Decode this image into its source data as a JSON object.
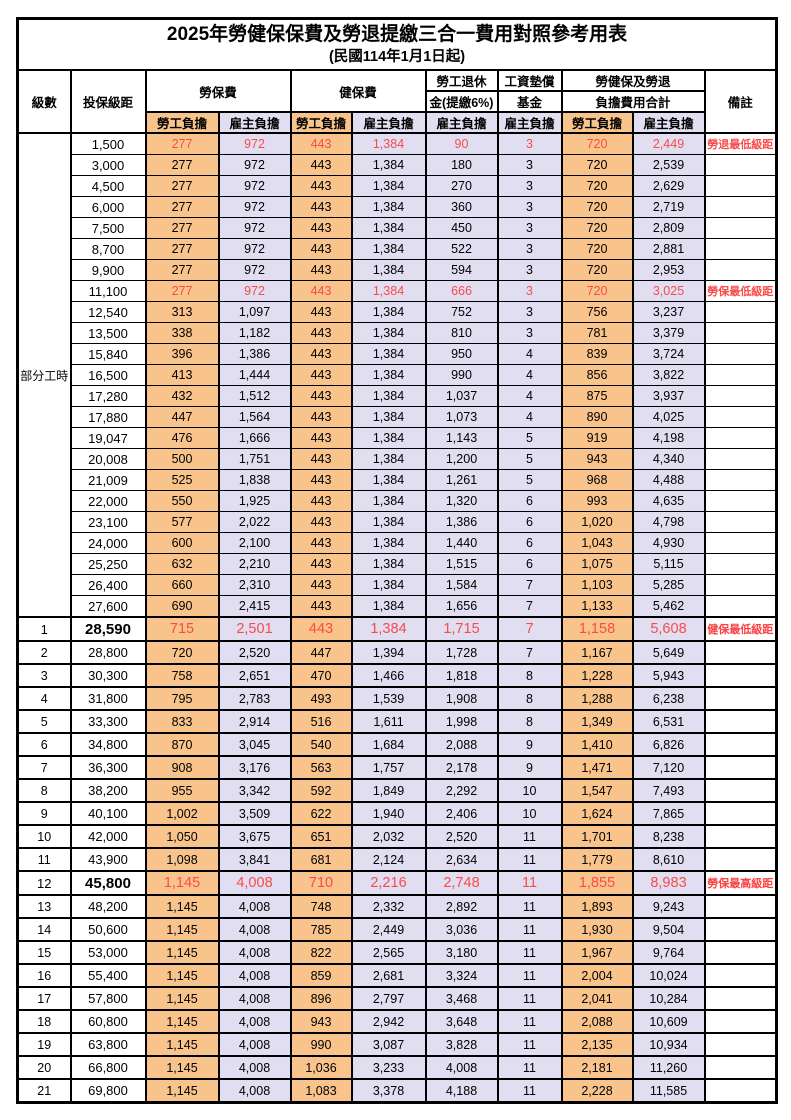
{
  "title": {
    "line1": "2025年勞健保保費及勞退提繳三合一費用對照參考用表",
    "line2": "(民國114年1月1日起)"
  },
  "colors": {
    "employee_column_bg": "#F9C48B",
    "employer_column_bg": "#E0DEF0",
    "highlight_text": "#F94B4B",
    "remark_text": "#FB4242",
    "border": "#000000"
  },
  "header": {
    "level": "級數",
    "bracket": "投保級距",
    "labor_insurance": "勞保費",
    "health_insurance": "健保費",
    "pension_line1": "勞工退休",
    "pension_line2": "金(提繳6%)",
    "wage_fund_line1": "工資墊償",
    "wage_fund_line2": "基金",
    "total_line1": "勞健保及勞退",
    "total_line2": "負擔費用合計",
    "remark": "備註",
    "employee_share": "勞工負擔",
    "employer_share": "雇主負擔"
  },
  "value_columns": [
    "勞保費-勞工負擔",
    "勞保費-雇主負擔",
    "健保費-勞工負擔",
    "健保費-雇主負擔",
    "勞工退休金-雇主負擔",
    "工資墊償基金-雇主負擔",
    "合計-勞工負擔",
    "合計-雇主負擔"
  ],
  "table": {
    "sections": {
      "part_time": {
        "label": "部分工時",
        "rows": [
          {
            "bracket": "1,500",
            "values": [
              "277",
              "972",
              "443",
              "1,384",
              "90",
              "3",
              "720",
              "2,449"
            ],
            "remark": "勞退最低級距",
            "style": "red"
          },
          {
            "bracket": "3,000",
            "values": [
              "277",
              "972",
              "443",
              "1,384",
              "180",
              "3",
              "720",
              "2,539"
            ],
            "remark": "",
            "style": ""
          },
          {
            "bracket": "4,500",
            "values": [
              "277",
              "972",
              "443",
              "1,384",
              "270",
              "3",
              "720",
              "2,629"
            ],
            "remark": "",
            "style": ""
          },
          {
            "bracket": "6,000",
            "values": [
              "277",
              "972",
              "443",
              "1,384",
              "360",
              "3",
              "720",
              "2,719"
            ],
            "remark": "",
            "style": ""
          },
          {
            "bracket": "7,500",
            "values": [
              "277",
              "972",
              "443",
              "1,384",
              "450",
              "3",
              "720",
              "2,809"
            ],
            "remark": "",
            "style": ""
          },
          {
            "bracket": "8,700",
            "values": [
              "277",
              "972",
              "443",
              "1,384",
              "522",
              "3",
              "720",
              "2,881"
            ],
            "remark": "",
            "style": ""
          },
          {
            "bracket": "9,900",
            "values": [
              "277",
              "972",
              "443",
              "1,384",
              "594",
              "3",
              "720",
              "2,953"
            ],
            "remark": "",
            "style": ""
          },
          {
            "bracket": "11,100",
            "values": [
              "277",
              "972",
              "443",
              "1,384",
              "666",
              "3",
              "720",
              "3,025"
            ],
            "remark": "勞保最低級距",
            "style": "red"
          },
          {
            "bracket": "12,540",
            "values": [
              "313",
              "1,097",
              "443",
              "1,384",
              "752",
              "3",
              "756",
              "3,237"
            ],
            "remark": "",
            "style": ""
          },
          {
            "bracket": "13,500",
            "values": [
              "338",
              "1,182",
              "443",
              "1,384",
              "810",
              "3",
              "781",
              "3,379"
            ],
            "remark": "",
            "style": ""
          },
          {
            "bracket": "15,840",
            "values": [
              "396",
              "1,386",
              "443",
              "1,384",
              "950",
              "4",
              "839",
              "3,724"
            ],
            "remark": "",
            "style": ""
          },
          {
            "bracket": "16,500",
            "values": [
              "413",
              "1,444",
              "443",
              "1,384",
              "990",
              "4",
              "856",
              "3,822"
            ],
            "remark": "",
            "style": ""
          },
          {
            "bracket": "17,280",
            "values": [
              "432",
              "1,512",
              "443",
              "1,384",
              "1,037",
              "4",
              "875",
              "3,937"
            ],
            "remark": "",
            "style": ""
          },
          {
            "bracket": "17,880",
            "values": [
              "447",
              "1,564",
              "443",
              "1,384",
              "1,073",
              "4",
              "890",
              "4,025"
            ],
            "remark": "",
            "style": ""
          },
          {
            "bracket": "19,047",
            "values": [
              "476",
              "1,666",
              "443",
              "1,384",
              "1,143",
              "5",
              "919",
              "4,198"
            ],
            "remark": "",
            "style": ""
          },
          {
            "bracket": "20,008",
            "values": [
              "500",
              "1,751",
              "443",
              "1,384",
              "1,200",
              "5",
              "943",
              "4,340"
            ],
            "remark": "",
            "style": ""
          },
          {
            "bracket": "21,009",
            "values": [
              "525",
              "1,838",
              "443",
              "1,384",
              "1,261",
              "5",
              "968",
              "4,488"
            ],
            "remark": "",
            "style": ""
          },
          {
            "bracket": "22,000",
            "values": [
              "550",
              "1,925",
              "443",
              "1,384",
              "1,320",
              "6",
              "993",
              "4,635"
            ],
            "remark": "",
            "style": ""
          },
          {
            "bracket": "23,100",
            "values": [
              "577",
              "2,022",
              "443",
              "1,384",
              "1,386",
              "6",
              "1,020",
              "4,798"
            ],
            "remark": "",
            "style": ""
          },
          {
            "bracket": "24,000",
            "values": [
              "600",
              "2,100",
              "443",
              "1,384",
              "1,440",
              "6",
              "1,043",
              "4,930"
            ],
            "remark": "",
            "style": ""
          },
          {
            "bracket": "25,250",
            "values": [
              "632",
              "2,210",
              "443",
              "1,384",
              "1,515",
              "6",
              "1,075",
              "5,115"
            ],
            "remark": "",
            "style": ""
          },
          {
            "bracket": "26,400",
            "values": [
              "660",
              "2,310",
              "443",
              "1,384",
              "1,584",
              "7",
              "1,103",
              "5,285"
            ],
            "remark": "",
            "style": ""
          },
          {
            "bracket": "27,600",
            "values": [
              "690",
              "2,415",
              "443",
              "1,384",
              "1,656",
              "7",
              "1,133",
              "5,462"
            ],
            "remark": "",
            "style": ""
          }
        ]
      },
      "levels": {
        "rows": [
          {
            "level": "1",
            "bracket": "28,590",
            "values": [
              "715",
              "2,501",
              "443",
              "1,384",
              "1,715",
              "7",
              "1,158",
              "5,608"
            ],
            "remark": "健保最低級距",
            "style": "hl"
          },
          {
            "level": "2",
            "bracket": "28,800",
            "values": [
              "720",
              "2,520",
              "447",
              "1,394",
              "1,728",
              "7",
              "1,167",
              "5,649"
            ],
            "remark": "",
            "style": ""
          },
          {
            "level": "3",
            "bracket": "30,300",
            "values": [
              "758",
              "2,651",
              "470",
              "1,466",
              "1,818",
              "8",
              "1,228",
              "5,943"
            ],
            "remark": "",
            "style": ""
          },
          {
            "level": "4",
            "bracket": "31,800",
            "values": [
              "795",
              "2,783",
              "493",
              "1,539",
              "1,908",
              "8",
              "1,288",
              "6,238"
            ],
            "remark": "",
            "style": ""
          },
          {
            "level": "5",
            "bracket": "33,300",
            "values": [
              "833",
              "2,914",
              "516",
              "1,611",
              "1,998",
              "8",
              "1,349",
              "6,531"
            ],
            "remark": "",
            "style": ""
          },
          {
            "level": "6",
            "bracket": "34,800",
            "values": [
              "870",
              "3,045",
              "540",
              "1,684",
              "2,088",
              "9",
              "1,410",
              "6,826"
            ],
            "remark": "",
            "style": ""
          },
          {
            "level": "7",
            "bracket": "36,300",
            "values": [
              "908",
              "3,176",
              "563",
              "1,757",
              "2,178",
              "9",
              "1,471",
              "7,120"
            ],
            "remark": "",
            "style": ""
          },
          {
            "level": "8",
            "bracket": "38,200",
            "values": [
              "955",
              "3,342",
              "592",
              "1,849",
              "2,292",
              "10",
              "1,547",
              "7,493"
            ],
            "remark": "",
            "style": ""
          },
          {
            "level": "9",
            "bracket": "40,100",
            "values": [
              "1,002",
              "3,509",
              "622",
              "1,940",
              "2,406",
              "10",
              "1,624",
              "7,865"
            ],
            "remark": "",
            "style": ""
          },
          {
            "level": "10",
            "bracket": "42,000",
            "values": [
              "1,050",
              "3,675",
              "651",
              "2,032",
              "2,520",
              "11",
              "1,701",
              "8,238"
            ],
            "remark": "",
            "style": ""
          },
          {
            "level": "11",
            "bracket": "43,900",
            "values": [
              "1,098",
              "3,841",
              "681",
              "2,124",
              "2,634",
              "11",
              "1,779",
              "8,610"
            ],
            "remark": "",
            "style": ""
          },
          {
            "level": "12",
            "bracket": "45,800",
            "values": [
              "1,145",
              "4,008",
              "710",
              "2,216",
              "2,748",
              "11",
              "1,855",
              "8,983"
            ],
            "remark": "勞保最高級距",
            "style": "hl"
          },
          {
            "level": "13",
            "bracket": "48,200",
            "values": [
              "1,145",
              "4,008",
              "748",
              "2,332",
              "2,892",
              "11",
              "1,893",
              "9,243"
            ],
            "remark": "",
            "style": ""
          },
          {
            "level": "14",
            "bracket": "50,600",
            "values": [
              "1,145",
              "4,008",
              "785",
              "2,449",
              "3,036",
              "11",
              "1,930",
              "9,504"
            ],
            "remark": "",
            "style": ""
          },
          {
            "level": "15",
            "bracket": "53,000",
            "values": [
              "1,145",
              "4,008",
              "822",
              "2,565",
              "3,180",
              "11",
              "1,967",
              "9,764"
            ],
            "remark": "",
            "style": ""
          },
          {
            "level": "16",
            "bracket": "55,400",
            "values": [
              "1,145",
              "4,008",
              "859",
              "2,681",
              "3,324",
              "11",
              "2,004",
              "10,024"
            ],
            "remark": "",
            "style": ""
          },
          {
            "level": "17",
            "bracket": "57,800",
            "values": [
              "1,145",
              "4,008",
              "896",
              "2,797",
              "3,468",
              "11",
              "2,041",
              "10,284"
            ],
            "remark": "",
            "style": ""
          },
          {
            "level": "18",
            "bracket": "60,800",
            "values": [
              "1,145",
              "4,008",
              "943",
              "2,942",
              "3,648",
              "11",
              "2,088",
              "10,609"
            ],
            "remark": "",
            "style": ""
          },
          {
            "level": "19",
            "bracket": "63,800",
            "values": [
              "1,145",
              "4,008",
              "990",
              "3,087",
              "3,828",
              "11",
              "2,135",
              "10,934"
            ],
            "remark": "",
            "style": ""
          },
          {
            "level": "20",
            "bracket": "66,800",
            "values": [
              "1,145",
              "4,008",
              "1,036",
              "3,233",
              "4,008",
              "11",
              "2,181",
              "11,260"
            ],
            "remark": "",
            "style": ""
          },
          {
            "level": "21",
            "bracket": "69,800",
            "values": [
              "1,145",
              "4,008",
              "1,083",
              "3,378",
              "4,188",
              "11",
              "2,228",
              "11,585"
            ],
            "remark": "",
            "style": ""
          }
        ]
      }
    }
  }
}
